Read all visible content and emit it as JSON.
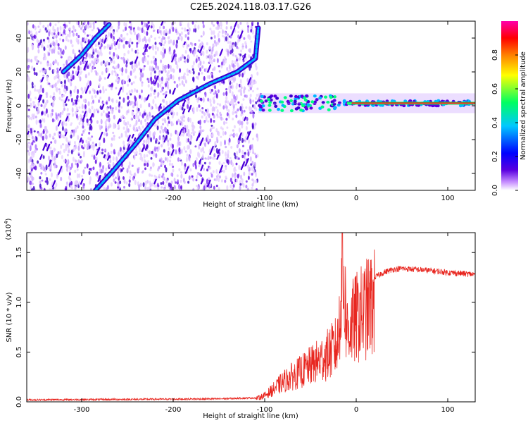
{
  "figure": {
    "title": "C2E5.2024.118.03.17.G26"
  },
  "chart_data": [
    {
      "type": "heatmap",
      "title": "C2E5.2024.118.03.17.G26",
      "xlabel": "Height of straight line (km)",
      "ylabel": "Frequency (Hz)",
      "xlim": [
        -360,
        130
      ],
      "ylim": [
        -50,
        50
      ],
      "xticks": [
        -300,
        -200,
        -100,
        0,
        100
      ],
      "yticks": [
        -40,
        -20,
        0,
        20,
        40
      ],
      "colorbar": {
        "label": "Normalized spectral amplitude",
        "range": [
          0,
          1
        ],
        "ticks": [
          "0.0",
          "0.2",
          "0.4",
          "0.6",
          "0.8"
        ],
        "colormap": [
          "#ffffff",
          "#c58cff",
          "#5a00e0",
          "#0000ff",
          "#00c8ff",
          "#00ff60",
          "#ffff00",
          "#ff8000",
          "#ff0000",
          "#ff00aa"
        ]
      },
      "features": {
        "noise_region_x": [
          -360,
          -107
        ],
        "diagonal_trace": [
          [
            -285,
            -50
          ],
          [
            -265,
            -38
          ],
          [
            -240,
            -22
          ],
          [
            -220,
            -8
          ],
          [
            -195,
            3
          ],
          [
            -160,
            13
          ],
          [
            -130,
            20
          ],
          [
            -110,
            28
          ],
          [
            -107,
            46
          ]
        ],
        "diagonal_trace_2": [
          [
            -320,
            20
          ],
          [
            -300,
            30
          ],
          [
            -285,
            40
          ],
          [
            -270,
            48
          ]
        ],
        "main_band": {
          "x": [
            -107,
            130
          ],
          "frequency": 1.5
        }
      }
    },
    {
      "type": "line",
      "xlabel": "Height of straight line (km)",
      "ylabel": "SNR (10 * v/v)",
      "exponent_label": "(x10",
      "exponent_power": "4",
      "xlim": [
        -360,
        130
      ],
      "ylim": [
        0,
        1.7
      ],
      "xticks": [
        -300,
        -200,
        -100,
        0,
        100
      ],
      "yticks": [
        0.0,
        0.5,
        1.0,
        1.5
      ],
      "ytick_labels": [
        "0.0",
        "0.5",
        "1.0",
        "1.5"
      ],
      "series": [
        {
          "color": "#e8261f",
          "envelope": [
            [
              -360,
              0.02
            ],
            [
              -250,
              0.025
            ],
            [
              -150,
              0.03
            ],
            [
              -110,
              0.04
            ],
            [
              -100,
              0.08
            ],
            [
              -90,
              0.16
            ],
            [
              -80,
              0.25
            ],
            [
              -70,
              0.32
            ],
            [
              -60,
              0.38
            ],
            [
              -50,
              0.45
            ],
            [
              -40,
              0.52
            ],
            [
              -30,
              0.6
            ],
            [
              -20,
              0.72
            ],
            [
              -15,
              1.7
            ],
            [
              -10,
              0.9
            ],
            [
              0,
              1.05
            ],
            [
              10,
              1.15
            ],
            [
              20,
              1.25
            ],
            [
              30,
              1.3
            ],
            [
              40,
              1.33
            ],
            [
              50,
              1.34
            ],
            [
              80,
              1.32
            ],
            [
              100,
              1.3
            ],
            [
              130,
              1.28
            ]
          ]
        }
      ]
    }
  ]
}
